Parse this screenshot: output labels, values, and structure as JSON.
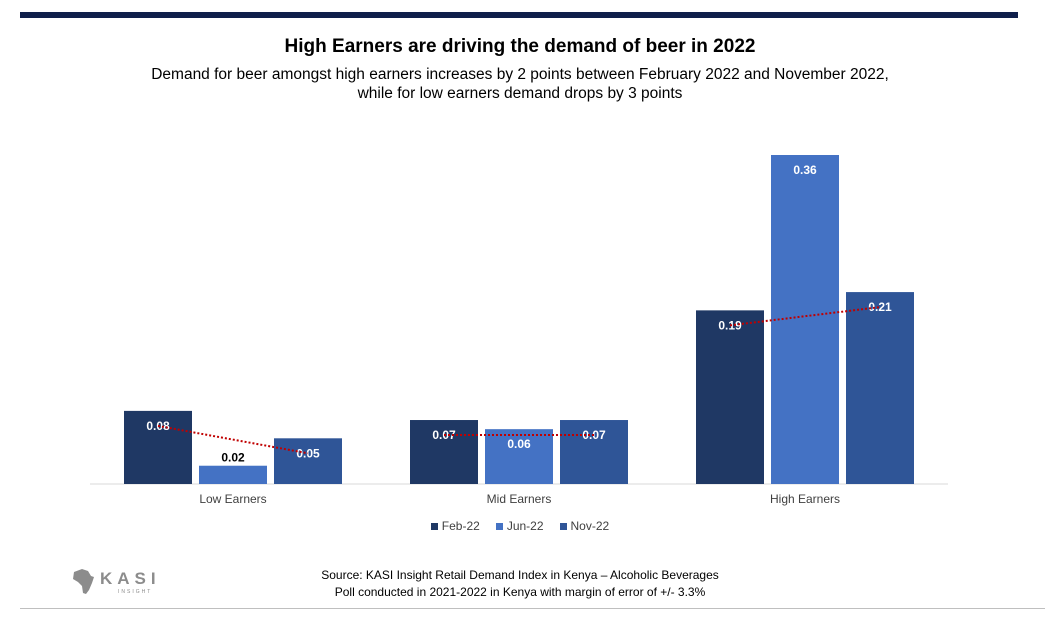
{
  "header": {
    "title": "High Earners are driving the demand of beer in 2022",
    "subtitle_line1": "Demand for beer amongst high earners increases by 2 points between February 2022 and November 2022,",
    "subtitle_line2": "while for low earners demand drops by 3 points"
  },
  "colors": {
    "rule_top": "#0f1f4b",
    "rule_bottom": "#bfbfbf",
    "trend": "#c00000",
    "label_dark_text": "#000000",
    "label_light_text": "#ffffff",
    "logo_gray": "#8c8c8c"
  },
  "chart_data": {
    "type": "bar",
    "categories": [
      "Low Earners",
      "Mid Earners",
      "High Earners"
    ],
    "series": [
      {
        "name": "Feb-22",
        "color": "#1f3864",
        "values": [
          0.08,
          0.07,
          0.19
        ]
      },
      {
        "name": "Jun-22",
        "color": "#4472c4",
        "values": [
          0.02,
          0.06,
          0.36
        ]
      },
      {
        "name": "Nov-22",
        "color": "#2f5597",
        "values": [
          0.05,
          0.07,
          0.21
        ]
      }
    ],
    "data_labels": [
      [
        "0.08",
        "0.02",
        "0.05"
      ],
      [
        "0.07",
        "0.06",
        "0.07"
      ],
      [
        "0.19",
        "0.36",
        "0.21"
      ]
    ],
    "trendlines": "dotted red line per category from Feb-22 to Nov-22",
    "ylim": [
      0,
      0.36
    ],
    "legend_position": "bottom",
    "grid": false,
    "y_axis_visible": false
  },
  "logo": {
    "text": "KASI",
    "tagline": "INSIGHT"
  },
  "footer": {
    "source_line1": "Source: KASI Insight Retail Demand Index in Kenya – Alcoholic Beverages",
    "source_line2": "Poll conducted in 2021-2022 in Kenya with margin of error of +/- 3.3%"
  }
}
